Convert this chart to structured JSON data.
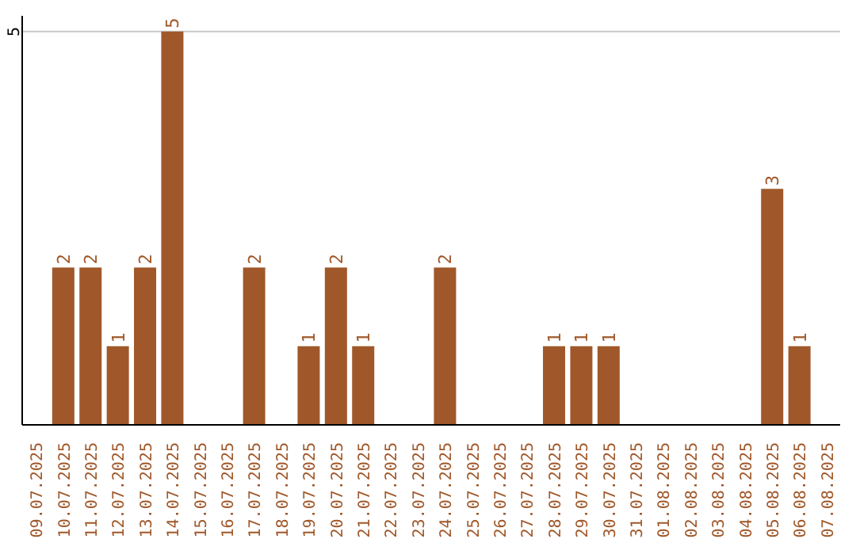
{
  "chart_data": {
    "type": "bar",
    "categories": [
      "09.07.2025",
      "10.07.2025",
      "11.07.2025",
      "12.07.2025",
      "13.07.2025",
      "14.07.2025",
      "15.07.2025",
      "16.07.2025",
      "17.07.2025",
      "18.07.2025",
      "19.07.2025",
      "20.07.2025",
      "21.07.2025",
      "22.07.2025",
      "23.07.2025",
      "24.07.2025",
      "25.07.2025",
      "26.07.2025",
      "27.07.2025",
      "28.07.2025",
      "29.07.2025",
      "30.07.2025",
      "31.07.2025",
      "01.08.2025",
      "02.08.2025",
      "03.08.2025",
      "04.08.2025",
      "05.08.2025",
      "06.08.2025",
      "07.08.2025"
    ],
    "values": [
      null,
      2,
      2,
      1,
      2,
      5,
      null,
      null,
      2,
      null,
      1,
      2,
      1,
      null,
      null,
      2,
      null,
      null,
      null,
      1,
      1,
      1,
      null,
      null,
      null,
      null,
      null,
      3,
      1,
      null
    ],
    "color": "#a0582a",
    "ylim": [
      0,
      5.2
    ],
    "yticks": [
      5
    ],
    "grid": "y",
    "data_labels": true
  }
}
